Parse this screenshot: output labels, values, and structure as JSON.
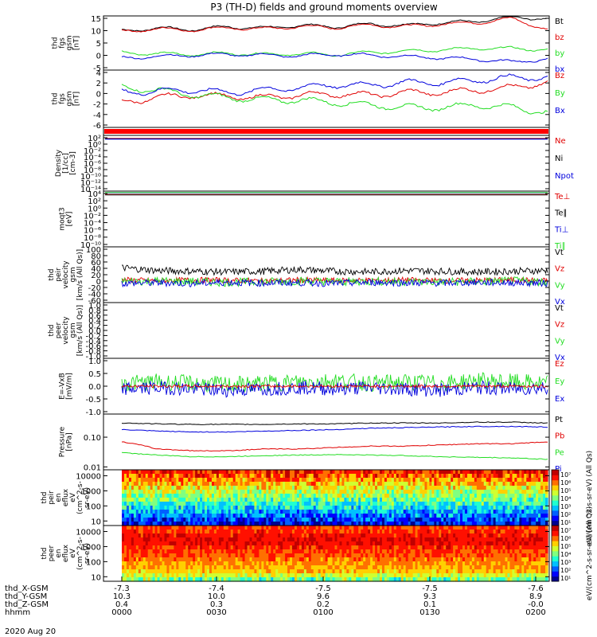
{
  "title": "P3 (TH-D) fields and ground moments overview",
  "date": "2020 Aug 20",
  "footer": {
    "rows": [
      {
        "label": "thd_X-GSM",
        "values": [
          "-7.3",
          "-7.4",
          "-7.5",
          "-7.5",
          "-7.6"
        ]
      },
      {
        "label": "thd_Y-GSM",
        "values": [
          "10.3",
          "10.0",
          "9.6",
          "9.3",
          "8.9"
        ]
      },
      {
        "label": "thd_Z-GSM",
        "values": [
          "0.4",
          "0.3",
          "0.2",
          "0.1",
          "-0.0"
        ]
      },
      {
        "label": "hhmm",
        "values": [
          "0000",
          "0030",
          "0100",
          "0130",
          "0200"
        ]
      }
    ]
  },
  "colors": {
    "black": "#000000",
    "red": "#e00000",
    "green": "#22dd22",
    "blue": "#0000dd"
  },
  "chart_data": [
    {
      "type": "line",
      "id": "fgs",
      "ylabel": [
        "thd",
        "fgs",
        "gsm",
        "[nT]"
      ],
      "yticks": [
        "15",
        "10",
        "5",
        "0",
        "-5"
      ],
      "ylim": [
        -5,
        15
      ],
      "legend": [
        {
          "name": "Bt",
          "color": "#000000"
        },
        {
          "name": "bz",
          "color": "#e00000"
        },
        {
          "name": "by",
          "color": "#22dd22"
        },
        {
          "name": "bx",
          "color": "#0000dd"
        }
      ],
      "series": [
        {
          "name": "Bt",
          "levels": [
            9.5,
            10.5,
            10,
            11,
            10.5,
            11.5,
            11,
            12,
            11.5,
            12.5,
            13,
            14.5,
            14
          ]
        },
        {
          "name": "bz",
          "levels": [
            9.3,
            10.2,
            9.8,
            10.6,
            10.2,
            11.1,
            10.7,
            11.6,
            11.1,
            12,
            12.5,
            14,
            10
          ]
        },
        {
          "name": "by",
          "levels": [
            1.5,
            1,
            0.8,
            1.2,
            0.8,
            1,
            0.7,
            1.5,
            2,
            2.5,
            3,
            3,
            2.5
          ]
        },
        {
          "name": "bx",
          "levels": [
            -0.5,
            0,
            0.5,
            0.8,
            0.5,
            0.3,
            0.8,
            0.5,
            0,
            -0.5,
            -1,
            -2,
            -1
          ]
        }
      ]
    },
    {
      "type": "line",
      "id": "fgs-mag",
      "ylabel": [
        "thd",
        "fgs",
        "gsm",
        "[nT]"
      ],
      "yticks": [
        "4",
        "2",
        "0",
        "-2",
        "-4",
        "-6"
      ],
      "ylim": [
        -7,
        4.5
      ],
      "legend": [
        {
          "name": "Bz",
          "color": "#e00000"
        },
        {
          "name": "By",
          "color": "#22dd22"
        },
        {
          "name": "Bx",
          "color": "#0000dd"
        }
      ],
      "series": [
        {
          "name": "Bz",
          "levels": [
            -2,
            -1,
            -0.5,
            -0.8,
            -1,
            -0.5,
            -0.3,
            -0.5,
            0,
            0,
            0.5,
            1,
            2
          ]
        },
        {
          "name": "By",
          "levels": [
            1,
            0.5,
            -0.5,
            -1,
            -1.5,
            -1.5,
            -2,
            -2.5,
            -3,
            -3,
            -2.5,
            -3,
            -4
          ]
        },
        {
          "name": "Bx",
          "levels": [
            0,
            0.3,
            0.5,
            0,
            0.5,
            1,
            1.5,
            1.5,
            2,
            2,
            2.5,
            3,
            3
          ]
        }
      ]
    },
    {
      "type": "line",
      "id": "density",
      "ylabel": [
        "Density",
        "[1/cc]",
        "[cm-3]"
      ],
      "yticks": [
        "10²",
        "10⁰",
        "10⁻²",
        "10⁻⁴",
        "10⁻⁶",
        "10⁻⁸",
        "10⁻¹⁰",
        "10⁻¹²",
        "10⁻¹⁴"
      ],
      "ylim": [
        -14,
        2
      ],
      "legend": [
        {
          "name": "Ne",
          "color": "#e00000"
        },
        {
          "name": "Ni",
          "color": "#000000"
        },
        {
          "name": "Npot",
          "color": "#0000dd"
        }
      ],
      "series": [
        {
          "name": "Ne",
          "levels": [
            1.1,
            1.1,
            1.1,
            1.1,
            1.1
          ]
        },
        {
          "name": "Ni",
          "levels": [
            1.0,
            1.0,
            1.0,
            1.0,
            1.0
          ]
        },
        {
          "name": "Npot",
          "levels": [
            0.9,
            0.9,
            0.9,
            0.9,
            0.9
          ]
        }
      ]
    },
    {
      "type": "line",
      "id": "temperature",
      "ylabel": [
        "moqt3",
        "[eV]"
      ],
      "yticks": [
        "10⁴",
        "10²",
        "10⁰",
        "10⁻²",
        "10⁻⁴",
        "10⁻⁶",
        "10⁻⁸",
        "10⁻¹⁰"
      ],
      "ylim": [
        -11,
        4
      ],
      "legend": [
        {
          "name": "Te⊥",
          "color": "#e00000"
        },
        {
          "name": "Te∥",
          "color": "#000000"
        },
        {
          "name": "Ti⊥",
          "color": "#0000dd"
        },
        {
          "name": "Ti∥",
          "color": "#22dd22"
        }
      ],
      "series": [
        {
          "name": "Te⊥",
          "levels": [
            3.1,
            3.1,
            3.1,
            3.1,
            3.1
          ]
        },
        {
          "name": "Te∥",
          "levels": [
            3.0,
            3.0,
            3.0,
            3.0,
            3.0
          ]
        },
        {
          "name": "Ti⊥",
          "levels": [
            3.5,
            3.5,
            3.5,
            3.5,
            3.5
          ]
        },
        {
          "name": "Ti∥",
          "levels": [
            3.6,
            3.6,
            3.6,
            3.6,
            3.6
          ]
        }
      ]
    },
    {
      "type": "line",
      "id": "ion-velocity",
      "ylabel": [
        "thd",
        "peir",
        "velocity",
        "gsm",
        "[km/s (All Qs)]"
      ],
      "yticks": [
        "100",
        "80",
        "60",
        "40",
        "20",
        "0",
        "-20",
        "-40",
        "-60"
      ],
      "ylim": [
        -60,
        100
      ],
      "legend": [
        {
          "name": "Vt",
          "color": "#000000"
        },
        {
          "name": "Vz",
          "color": "#e00000"
        },
        {
          "name": "Vy",
          "color": "#22dd22"
        },
        {
          "name": "Vx",
          "color": "#0000dd"
        }
      ],
      "series": [
        {
          "name": "Vt",
          "levels": [
            40,
            32,
            30,
            28,
            30,
            35,
            30,
            28,
            32,
            30,
            28,
            30,
            32
          ],
          "noise": 10
        },
        {
          "name": "Vz",
          "levels": [
            5,
            3,
            5,
            4,
            2,
            5,
            3,
            4,
            5,
            3,
            4,
            5,
            3
          ],
          "noise": 8
        },
        {
          "name": "Vy",
          "levels": [
            0,
            2,
            0,
            -2,
            0,
            2,
            0,
            1,
            0,
            -1,
            0,
            2,
            0
          ],
          "noise": 12
        },
        {
          "name": "Vx",
          "levels": [
            -5,
            -3,
            -5,
            -2,
            -4,
            -3,
            -5,
            -2,
            -3,
            -4,
            -2,
            -3,
            -4
          ],
          "noise": 10
        }
      ]
    },
    {
      "type": "line",
      "id": "electron-velocity",
      "ylabel": [
        "thd",
        "peer",
        "velocity",
        "gsm",
        "[km/s (All Qs)]"
      ],
      "yticks": [
        "1.0",
        "0.8",
        "0.6",
        "0.4",
        "0.2",
        "0.0",
        "-0.2",
        "-0.4",
        "-0.6",
        "-0.8",
        "-1.0"
      ],
      "ylim": [
        -1,
        1
      ],
      "legend": [
        {
          "name": "Vt",
          "color": "#000000"
        },
        {
          "name": "Vz",
          "color": "#e00000"
        },
        {
          "name": "Vy",
          "color": "#22dd22"
        },
        {
          "name": "Vx",
          "color": "#0000dd"
        }
      ],
      "series": []
    },
    {
      "type": "line",
      "id": "e-field",
      "ylabel": [
        "E=-VxB",
        "[mV/m]"
      ],
      "yticks": [
        "1.0",
        "0.5",
        "0.0",
        "-0.5",
        "-1.0"
      ],
      "ylim": [
        -1,
        1
      ],
      "legend": [
        {
          "name": "Ez",
          "color": "#e00000"
        },
        {
          "name": "Ey",
          "color": "#22dd22"
        },
        {
          "name": "Ex",
          "color": "#0000dd"
        }
      ],
      "series": [
        {
          "name": "Ey",
          "levels": [
            0.1,
            0.15,
            0.1,
            0.05,
            0.1,
            0.15,
            0.2,
            0.1,
            0.15,
            0.1,
            0.2,
            0.15,
            0.1
          ],
          "noise": 0.3
        },
        {
          "name": "Ex",
          "levels": [
            -0.1,
            -0.05,
            -0.1,
            -0.15,
            -0.1,
            -0.05,
            -0.1,
            -0.05,
            -0.1,
            -0.15,
            -0.05,
            -0.1,
            -0.05
          ],
          "noise": 0.25
        },
        {
          "name": "Ez",
          "levels": [
            0,
            0,
            0,
            0,
            0,
            0,
            0,
            0,
            0,
            0,
            0,
            0,
            0
          ],
          "noise": 0.05
        }
      ]
    },
    {
      "type": "line",
      "id": "pressure",
      "scale": "log",
      "ylabel": [
        "Pressure",
        "[nPa]"
      ],
      "yticks": [
        "0.10",
        "0.01"
      ],
      "ylim": [
        0.008,
        0.6
      ],
      "legend": [
        {
          "name": "Pt",
          "color": "#000000"
        },
        {
          "name": "Pb",
          "color": "#e00000"
        },
        {
          "name": "Pe",
          "color": "#22dd22"
        },
        {
          "name": "Pi",
          "color": "#0000dd"
        }
      ],
      "series": [
        {
          "name": "Pt",
          "levels": [
            0.3,
            0.28,
            0.27,
            0.27,
            0.27,
            0.28,
            0.28,
            0.3,
            0.3,
            0.3,
            0.32,
            0.32,
            0.3
          ]
        },
        {
          "name": "Pi",
          "levels": [
            0.18,
            0.16,
            0.15,
            0.15,
            0.16,
            0.17,
            0.18,
            0.2,
            0.21,
            0.22,
            0.23,
            0.23,
            0.22
          ]
        },
        {
          "name": "Pb",
          "levels": [
            0.07,
            0.04,
            0.035,
            0.035,
            0.04,
            0.04,
            0.045,
            0.05,
            0.05,
            0.055,
            0.06,
            0.06,
            0.07
          ]
        },
        {
          "name": "Pe",
          "levels": [
            0.03,
            0.025,
            0.022,
            0.022,
            0.024,
            0.025,
            0.026,
            0.025,
            0.024,
            0.022,
            0.021,
            0.02,
            0.018
          ]
        }
      ]
    },
    {
      "type": "heatmap",
      "id": "ion-spectrogram",
      "ylabel": [
        "thd",
        "peir",
        "en",
        "eflux",
        "eV",
        "(cm^2-s-",
        "sr-eV)"
      ],
      "yticks": [
        "10000",
        "1000",
        "100",
        "10"
      ],
      "ylim": [
        5,
        25000
      ],
      "colorbar": {
        "label": "eV/(cm^2-s-sr-eV) (All Qs)",
        "ticks": [
          "10⁷",
          "10⁶",
          "10⁵",
          "10⁴",
          "10³",
          "10²",
          "10¹"
        ]
      }
    },
    {
      "type": "heatmap",
      "id": "electron-spectrogram",
      "ylabel": [
        "thd",
        "peer",
        "en",
        "eflux",
        "eV",
        "(cm^2-s-",
        "sr-eV)"
      ],
      "yticks": [
        "10000",
        "1000",
        "100",
        "10"
      ],
      "ylim": [
        5,
        25000
      ],
      "colorbar": {
        "label": "eV/(cm^2-s-sr-eV) (All Qs)",
        "ticks": [
          "10⁷",
          "10⁶",
          "10⁵",
          "10⁴",
          "10³",
          "10²",
          "10¹"
        ]
      }
    }
  ]
}
